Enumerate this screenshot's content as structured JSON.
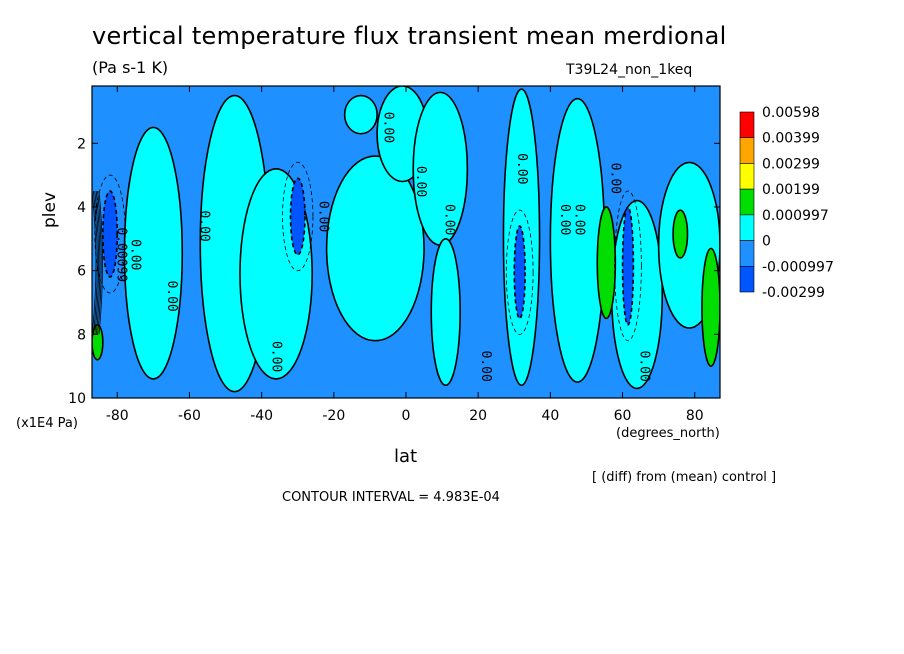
{
  "header": {
    "title": "vertical temperature flux transient mean merdional",
    "units": "(Pa s-1 K)",
    "run": "T39L24_non_1keq"
  },
  "axes": {
    "ylabel": "plev",
    "yunits": "(x1E4 Pa)",
    "xlabel": "lat",
    "xunits": "(degrees_north)"
  },
  "notes": {
    "diff": "[ (diff) from (mean) control ]",
    "contour_interval": "CONTOUR INTERVAL = 4.983E-04"
  },
  "chart_data": {
    "type": "heatmap",
    "title": "vertical temperature flux transient mean merdional",
    "subtitle": "(Pa s-1 K)",
    "xlabel": "lat",
    "ylabel": "plev",
    "xlim": [
      -87,
      87
    ],
    "ylim": [
      0.2,
      10
    ],
    "y_inverted": true,
    "x_ticks": [
      "-80",
      "-60",
      "-40",
      "-20",
      "0",
      "20",
      "40",
      "60",
      "80"
    ],
    "x_tick_values": [
      -80,
      -60,
      -40,
      -20,
      0,
      20,
      40,
      60,
      80
    ],
    "y_ticks": [
      "2",
      "4",
      "6",
      "8",
      "10"
    ],
    "y_tick_values": [
      2,
      4,
      6,
      8,
      10
    ],
    "colorbar": {
      "labels": [
        "0.00598",
        "0.00399",
        "0.00299",
        "0.00199",
        "0.000997",
        "0",
        "-0.000997",
        "-0.00299"
      ],
      "colors": [
        "#ff0000",
        "#ffa500",
        "#ffff00",
        "#00dd00",
        "#00ffff",
        "#1e90ff",
        "#0055ff"
      ]
    },
    "contour_labels": [
      "0.00",
      "0.00",
      "0.00",
      "0.00",
      "0.00",
      "0.00",
      "0.00",
      "0.00",
      "0.00",
      "0.00",
      "0.00",
      "0.00",
      "0.00",
      "0.00099",
      "0.00"
    ],
    "regions": {
      "base_color": "#1e90ff",
      "cyan_bands": [
        {
          "lat": [
            -78,
            -62
          ],
          "plev": [
            1.5,
            9.4
          ]
        },
        {
          "lat": [
            -57,
            -38
          ],
          "plev": [
            0.5,
            9.8
          ]
        },
        {
          "lat": [
            -46,
            -26
          ],
          "plev": [
            2.8,
            9.4
          ]
        },
        {
          "lat": [
            -22,
            5
          ],
          "plev": [
            2.4,
            8.2
          ]
        },
        {
          "lat": [
            -8,
            6
          ],
          "plev": [
            0.2,
            3.2
          ]
        },
        {
          "lat": [
            2,
            17
          ],
          "plev": [
            0.4,
            5.2
          ]
        },
        {
          "lat": [
            7,
            15
          ],
          "plev": [
            5.0,
            9.6
          ]
        },
        {
          "lat": [
            27,
            37
          ],
          "plev": [
            0.3,
            9.6
          ]
        },
        {
          "lat": [
            40,
            55
          ],
          "plev": [
            0.6,
            9.5
          ]
        },
        {
          "lat": [
            57,
            71
          ],
          "plev": [
            3.8,
            9.7
          ]
        },
        {
          "lat": [
            70,
            87
          ],
          "plev": [
            2.6,
            7.8
          ]
        },
        {
          "lat": [
            -17,
            -8
          ],
          "plev": [
            0.5,
            1.7
          ]
        }
      ],
      "blue_cores": [
        {
          "lat": [
            -84,
            -80
          ],
          "plev": [
            3.5,
            6.2
          ]
        },
        {
          "lat": [
            -32,
            -28
          ],
          "plev": [
            3.1,
            5.5
          ]
        },
        {
          "lat": [
            30,
            33
          ],
          "plev": [
            4.6,
            7.5
          ]
        },
        {
          "lat": [
            60,
            63
          ],
          "plev": [
            4.0,
            7.7
          ]
        }
      ],
      "green_cores": [
        {
          "lat": [
            53,
            58
          ],
          "plev": [
            4.0,
            7.5
          ]
        },
        {
          "lat": [
            74,
            78
          ],
          "plev": [
            4.1,
            5.6
          ]
        },
        {
          "lat": [
            82,
            87
          ],
          "plev": [
            5.3,
            9.0
          ]
        },
        {
          "lat": [
            -87,
            -84
          ],
          "plev": [
            7.7,
            8.8
          ]
        }
      ]
    }
  }
}
